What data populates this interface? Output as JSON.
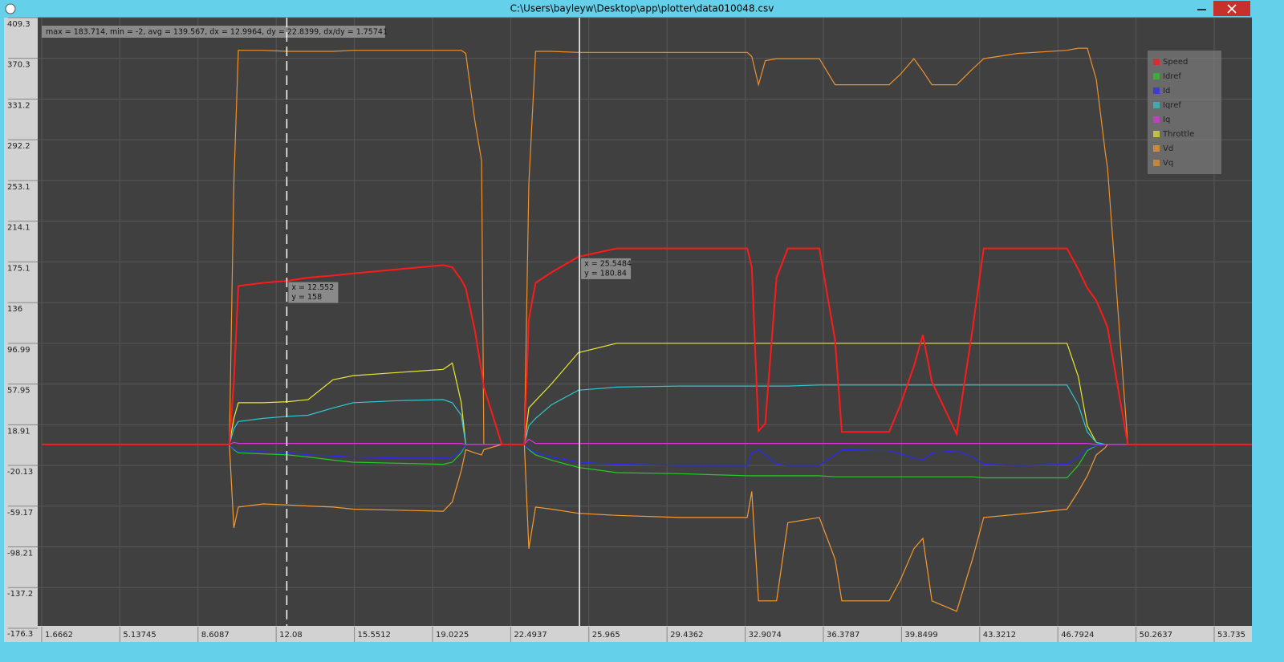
{
  "window": {
    "title": "C:\\Users\\bayleyw\\Desktop\\app\\plotter\\data010048.csv"
  },
  "chart_data": {
    "type": "line",
    "readout": "max = 183.714, min = -2, avg = 139.567, dx = 12.9964, dy = 22.8399, dx/dy = 1.75741",
    "x": [
      1.7,
      10.0,
      10.2,
      10.4,
      11.5,
      12.6,
      13.5,
      14.6,
      15.5,
      17.5,
      19.5,
      19.9,
      20.3,
      20.5,
      20.9,
      21.2,
      21.3,
      22.1,
      23.1,
      23.3,
      23.6,
      24.3,
      25.5,
      27.2,
      30.0,
      33.0,
      33.2,
      33.5,
      33.8,
      34.3,
      34.8,
      36.2,
      36.9,
      37.2,
      39.3,
      39.8,
      40.4,
      40.8,
      41.2,
      42.3,
      43.0,
      43.5,
      45.0,
      47.2,
      47.7,
      48.1,
      48.5,
      48.9,
      49.0,
      49.9,
      55.4
    ],
    "series": [
      {
        "name": "Vq",
        "color": "#f0902a",
        "values": [
          0,
          0,
          250,
          378,
          378,
          377,
          377,
          377,
          378,
          378,
          378,
          378,
          378,
          375,
          311,
          272,
          0,
          0,
          0,
          250,
          377,
          377,
          376,
          376,
          376,
          376,
          372,
          345,
          368,
          370,
          370,
          370,
          345,
          345,
          345,
          355,
          370,
          358,
          345,
          345,
          360,
          370,
          375,
          378,
          380,
          380,
          350,
          280,
          265,
          0,
          0
        ]
      },
      {
        "name": "Vd",
        "color": "#f59a30",
        "values": [
          0,
          0,
          -80,
          -60,
          -57,
          -58,
          -59,
          -60,
          -62,
          -63,
          -64,
          -55,
          -25,
          -5,
          -8,
          -10,
          -5,
          0,
          0,
          -100,
          -60,
          -62,
          -66,
          -68,
          -70,
          -70,
          -45,
          -150,
          -150,
          -150,
          -75,
          -70,
          -110,
          -150,
          -150,
          -130,
          -100,
          -90,
          -150,
          -160,
          -110,
          -70,
          -67,
          -62,
          -45,
          -30,
          -10,
          -3,
          0,
          0,
          0
        ]
      },
      {
        "name": "Throttle",
        "color": "#e8e830",
        "values": [
          0,
          0,
          25,
          40,
          40,
          41,
          43,
          62,
          66,
          69,
          72,
          78,
          40,
          0,
          0,
          0,
          0,
          0,
          0,
          35,
          42,
          58,
          88,
          97,
          97,
          97,
          97,
          97,
          97,
          97,
          97,
          97,
          97,
          97,
          97,
          97,
          97,
          97,
          97,
          97,
          97,
          97,
          97,
          97,
          65,
          18,
          2,
          0,
          0,
          0,
          0
        ]
      },
      {
        "name": "Iqref",
        "color": "#2ec8d0",
        "values": [
          0,
          0,
          15,
          22,
          25,
          27,
          28,
          35,
          40,
          42,
          43,
          40,
          28,
          0,
          0,
          0,
          0,
          0,
          0,
          18,
          25,
          38,
          52,
          55,
          56,
          56,
          56,
          56,
          56,
          56,
          56,
          57,
          57,
          57,
          57,
          57,
          57,
          57,
          57,
          57,
          57,
          57,
          57,
          57,
          38,
          12,
          2,
          0,
          0,
          0,
          0
        ]
      },
      {
        "name": "Idref",
        "color": "#22cc22",
        "values": [
          0,
          0,
          -5,
          -8,
          -9,
          -10,
          -12,
          -15,
          -17,
          -18,
          -19,
          -17,
          -8,
          0,
          0,
          0,
          0,
          0,
          0,
          -5,
          -10,
          -15,
          -22,
          -27,
          -28,
          -30,
          -30,
          -30,
          -30,
          -30,
          -30,
          -30,
          -31,
          -31,
          -31,
          -31,
          -31,
          -31,
          -31,
          -31,
          -31,
          -32,
          -32,
          -32,
          -20,
          -6,
          -1,
          0,
          0,
          0,
          0
        ]
      },
      {
        "name": "Id",
        "color": "#2a2aff",
        "values": [
          0,
          0,
          -4,
          -7,
          -7,
          -8,
          -10,
          -11,
          -12,
          -13,
          -13,
          -12,
          -6,
          0,
          0,
          0,
          0,
          0,
          0,
          -4,
          -8,
          -12,
          -17,
          -19,
          -20,
          -20,
          -8,
          -5,
          -10,
          -19,
          -20,
          -20,
          -10,
          -5,
          -6,
          -9,
          -13,
          -15,
          -8,
          -6,
          -12,
          -19,
          -20,
          -19,
          -12,
          -4,
          -1,
          0,
          0,
          0,
          0
        ]
      },
      {
        "name": "Iq",
        "color": "#e030e0",
        "values": [
          0,
          0,
          2,
          1,
          1,
          1,
          1,
          1,
          1,
          1,
          1,
          1,
          1,
          0,
          0,
          0,
          0,
          0,
          0,
          5,
          1,
          1,
          1,
          1,
          1,
          1,
          1,
          1,
          1,
          1,
          1,
          1,
          1,
          1,
          1,
          1,
          1,
          1,
          1,
          1,
          1,
          1,
          1,
          1,
          1,
          1,
          0,
          0,
          0,
          0,
          0
        ]
      },
      {
        "name": "Speed",
        "color": "#ff1a1a",
        "values": [
          0,
          0,
          60,
          152,
          155,
          157,
          160,
          162,
          164,
          168,
          172,
          170,
          158,
          150,
          110,
          70,
          55,
          0,
          0,
          120,
          155,
          165,
          180,
          188,
          188,
          188,
          170,
          13,
          20,
          160,
          188,
          188,
          100,
          12,
          12,
          38,
          75,
          105,
          60,
          10,
          110,
          188,
          188,
          188,
          168,
          150,
          138,
          118,
          112,
          0,
          0
        ]
      }
    ],
    "legend_order": [
      "Speed",
      "Idref",
      "Id",
      "Iqref",
      "Iq",
      "Throttle",
      "Vd",
      "Vq"
    ],
    "legend": "top-right",
    "xlim": [
      1.49,
      55.41
    ],
    "xticks": [
      1.6662,
      5.13745,
      8.6087,
      12.08,
      15.5512,
      19.0225,
      22.4937,
      25.965,
      29.4362,
      32.9074,
      36.3787,
      39.8499,
      43.3212,
      46.7924,
      50.2637,
      53.735
    ],
    "ylim": [
      -176.3,
      409.3
    ],
    "yticks": [
      409.3,
      370.3,
      331.2,
      292.2,
      253.1,
      214.1,
      175.1,
      136,
      96.99,
      57.95,
      18.91,
      -20.13,
      -59.17,
      -98.21,
      -137.2,
      -176.3
    ],
    "grid": true,
    "cursors": [
      {
        "x": {
          "value": 12.552,
          "label": "x = 12.552"
        },
        "y": {
          "value": 158,
          "label": "y = 158"
        },
        "style": "dashed"
      },
      {
        "x": {
          "value": 25.5484,
          "label": "x = 25.5484"
        },
        "y": {
          "value": 180.84,
          "label": "y = 180.84"
        },
        "style": "solid"
      }
    ]
  }
}
